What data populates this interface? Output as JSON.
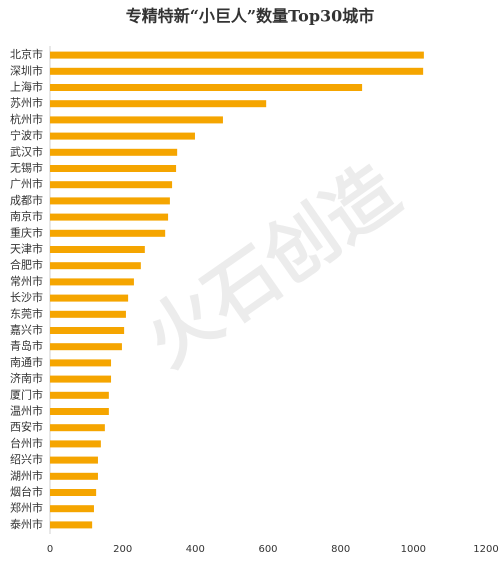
{
  "chart_data": {
    "type": "barh",
    "title": "专精特新“小巨人”数量Top30城市",
    "watermark": "火石创造",
    "categories": [
      "北京市",
      "深圳市",
      "上海市",
      "苏州市",
      "杭州市",
      "宁波市",
      "武汉市",
      "无锡市",
      "广州市",
      "成都市",
      "南京市",
      "重庆市",
      "天津市",
      "合肥市",
      "常州市",
      "长沙市",
      "东莞市",
      "嘉兴市",
      "青岛市",
      "南通市",
      "济南市",
      "厦门市",
      "温州市",
      "西安市",
      "台州市",
      "绍兴市",
      "湖州市",
      "烟台市",
      "郑州市",
      "泰州市"
    ],
    "values": [
      1029,
      1027,
      859,
      595,
      476,
      399,
      350,
      347,
      336,
      330,
      325,
      317,
      261,
      250,
      231,
      215,
      209,
      204,
      198,
      168,
      168,
      162,
      162,
      151,
      140,
      132,
      132,
      127,
      121,
      116
    ],
    "color": "#f5a500",
    "xlim": [
      0,
      1200
    ],
    "xticks": [
      0,
      200,
      400,
      600,
      800,
      1000,
      1200
    ],
    "grid": false
  }
}
